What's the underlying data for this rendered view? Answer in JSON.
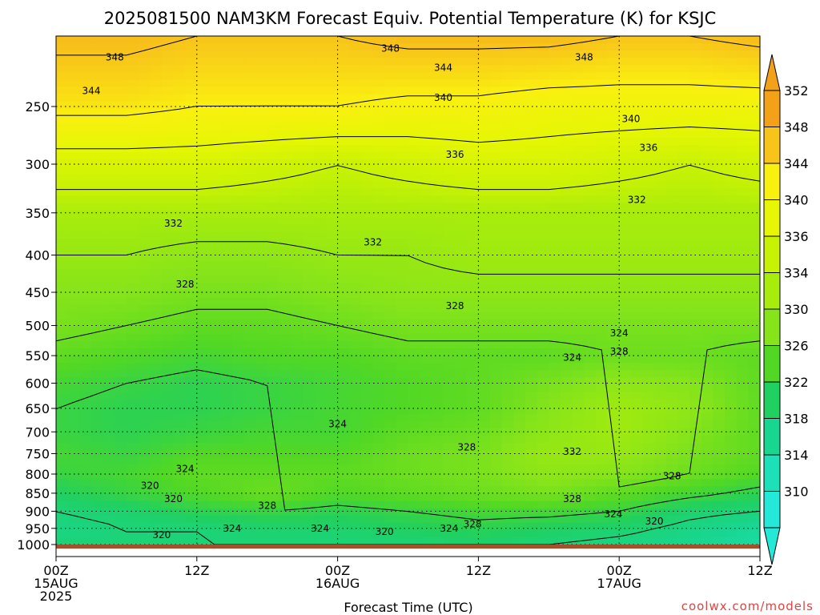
{
  "chart_data": {
    "type": "contour",
    "title": "2025081500 NAM3KM Forecast Equiv. Potential Temperature (K) for KSJC",
    "xlabel": "Forecast Time (UTC)",
    "ylabel": "",
    "x_ticks": [
      {
        "hour": 0,
        "line1": "00Z",
        "line2": "15AUG",
        "line3": "2025"
      },
      {
        "hour": 12,
        "line1": "12Z",
        "line2": "",
        "line3": ""
      },
      {
        "hour": 24,
        "line1": "00Z",
        "line2": "16AUG",
        "line3": ""
      },
      {
        "hour": 36,
        "line1": "12Z",
        "line2": "",
        "line3": ""
      },
      {
        "hour": 48,
        "line1": "00Z",
        "line2": "17AUG",
        "line3": ""
      },
      {
        "hour": 60,
        "line1": "12Z",
        "line2": "",
        "line3": ""
      }
    ],
    "xlim": [
      0,
      60
    ],
    "y_ticks": [
      250,
      300,
      350,
      400,
      450,
      500,
      550,
      600,
      650,
      700,
      750,
      800,
      850,
      900,
      950,
      1000
    ],
    "ylim": [
      1000,
      200
    ],
    "y_scale": "log",
    "grid": true,
    "colorbar": {
      "labels": [
        352,
        348,
        344,
        340,
        336,
        334,
        330,
        326,
        322,
        318,
        314,
        310
      ],
      "colors": [
        "#f4a11a",
        "#f8c41a",
        "#faf010",
        "#e6f604",
        "#c8f204",
        "#a8ec0c",
        "#86e41a",
        "#52d824",
        "#20d060",
        "#18d690",
        "#1ce0b8",
        "#24e8d8"
      ]
    },
    "profile_hours": [
      0,
      6,
      12,
      18,
      24,
      30,
      36,
      42,
      48,
      54,
      60
    ],
    "profile_levels": [
      200,
      250,
      300,
      350,
      400,
      450,
      500,
      550,
      600,
      650,
      700,
      750,
      800,
      850,
      900,
      950,
      1000
    ],
    "theta_e": [
      [
        349,
        345,
        338,
        334,
        332,
        330,
        329,
        327,
        325,
        324,
        324,
        325,
        324,
        322,
        320,
        319,
        320
      ],
      [
        349,
        345,
        338,
        334,
        332,
        330,
        328,
        326,
        324,
        323,
        323,
        324,
        325,
        324,
        321,
        320,
        320
      ],
      [
        348,
        344,
        338,
        334,
        331,
        329,
        327,
        325,
        323,
        323,
        324,
        326,
        327,
        326,
        323,
        320,
        320
      ],
      [
        348,
        344,
        337,
        334,
        331,
        329,
        327,
        326,
        324,
        324,
        325,
        326,
        327,
        328,
        324,
        321,
        320
      ],
      [
        348,
        344,
        336,
        334,
        332,
        330,
        328,
        326,
        325,
        325,
        325,
        326,
        327,
        326,
        323,
        321,
        320
      ],
      [
        349,
        343,
        337,
        334,
        332,
        331,
        329,
        327,
        326,
        326,
        327,
        328,
        328,
        327,
        324,
        322,
        320
      ],
      [
        349,
        343,
        338,
        334,
        333,
        331,
        329,
        327,
        327,
        327,
        328,
        329,
        329,
        328,
        325,
        323,
        321
      ],
      [
        349,
        342,
        338,
        334,
        333,
        331,
        329,
        327,
        329,
        330,
        331,
        332,
        331,
        329,
        325,
        322,
        320
      ],
      [
        348,
        342,
        337,
        334,
        333,
        331,
        329,
        328,
        331,
        333,
        333,
        332,
        330,
        327,
        324,
        321,
        319
      ],
      [
        348,
        342,
        336,
        334,
        333,
        331,
        329,
        328,
        330,
        331,
        330,
        329,
        328,
        325,
        321,
        319,
        318
      ],
      [
        349,
        342,
        337,
        334,
        333,
        331,
        329,
        327,
        327,
        327,
        327,
        327,
        326,
        323,
        320,
        317,
        316
      ]
    ],
    "contour_labels": [
      {
        "text": "348",
        "hour": 5.0,
        "pres": 214
      },
      {
        "text": "348",
        "hour": 28.5,
        "pres": 208
      },
      {
        "text": "348",
        "hour": 45.0,
        "pres": 214
      },
      {
        "text": "344",
        "hour": 3.0,
        "pres": 238
      },
      {
        "text": "344",
        "hour": 33.0,
        "pres": 221
      },
      {
        "text": "340",
        "hour": 33.0,
        "pres": 243
      },
      {
        "text": "340",
        "hour": 49.0,
        "pres": 260
      },
      {
        "text": "336",
        "hour": 34.0,
        "pres": 291
      },
      {
        "text": "336",
        "hour": 50.5,
        "pres": 285
      },
      {
        "text": "332",
        "hour": 10.0,
        "pres": 362
      },
      {
        "text": "332",
        "hour": 27.0,
        "pres": 384
      },
      {
        "text": "332",
        "hour": 49.5,
        "pres": 336
      },
      {
        "text": "328",
        "hour": 11.0,
        "pres": 439
      },
      {
        "text": "328",
        "hour": 34.0,
        "pres": 470
      },
      {
        "text": "328",
        "hour": 48.0,
        "pres": 543
      },
      {
        "text": "328",
        "hour": 35.0,
        "pres": 735
      },
      {
        "text": "328",
        "hour": 52.5,
        "pres": 805
      },
      {
        "text": "328",
        "hour": 44.0,
        "pres": 866
      },
      {
        "text": "328",
        "hour": 18.0,
        "pres": 884
      },
      {
        "text": "328",
        "hour": 35.5,
        "pres": 937
      },
      {
        "text": "324",
        "hour": 48.0,
        "pres": 512
      },
      {
        "text": "324",
        "hour": 44.0,
        "pres": 553
      },
      {
        "text": "324",
        "hour": 24.0,
        "pres": 683
      },
      {
        "text": "324",
        "hour": 11.0,
        "pres": 787
      },
      {
        "text": "324",
        "hour": 15.0,
        "pres": 950
      },
      {
        "text": "324",
        "hour": 22.5,
        "pres": 950
      },
      {
        "text": "324",
        "hour": 33.5,
        "pres": 950
      },
      {
        "text": "324",
        "hour": 47.5,
        "pres": 908
      },
      {
        "text": "332",
        "hour": 44.0,
        "pres": 745
      },
      {
        "text": "320",
        "hour": 8.0,
        "pres": 830
      },
      {
        "text": "320",
        "hour": 10.0,
        "pres": 865
      },
      {
        "text": "320",
        "hour": 9.0,
        "pres": 970
      },
      {
        "text": "320",
        "hour": 28.0,
        "pres": 960
      },
      {
        "text": "320",
        "hour": 51.0,
        "pres": 929
      }
    ]
  },
  "credit": "coolwx.com/models"
}
